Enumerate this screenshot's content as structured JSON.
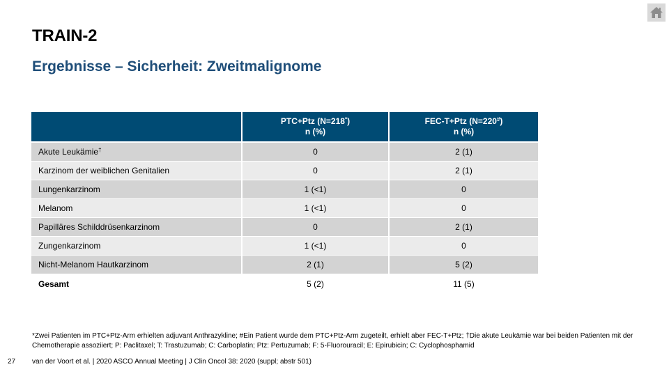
{
  "slide": {
    "title": "TRAIN-2",
    "subtitle": "Ergebnisse – Sicherheit: Zweitmalignome",
    "page_number": "27",
    "reference": "van der Voort et al. | 2020 ASCO Annual Meeting | J Clin Oncol 38: 2020 (suppl; abstr 501)",
    "footnote": "*Zwei Patienten im PTC+Ptz-Arm erhielten adjuvant Anthrazykline; #Ein Patient wurde dem PTC+Ptz-Arm zugeteilt, erhielt aber FEC-T+Ptz; †Die akute Leukämie war bei beiden Patienten mit der Chemotherapie assoziiert; P: Paclitaxel; T: Trastuzumab; C: Carboplatin; Ptz: Pertuzumab; F: 5-Fluorouracil; E: Epirubicin; C: Cyclophosphamid",
    "home_icon": "home-icon"
  },
  "table": {
    "headers": [
      {
        "line1": "",
        "line2": ""
      },
      {
        "line1": "PTC+Ptz (N=218",
        "sup": "*",
        "line1_end": ")",
        "line2": "n (%)"
      },
      {
        "line1": "FEC-T+Ptz (N=220",
        "sup": "#",
        "line1_end": ")",
        "line2": "n (%)"
      }
    ],
    "rows": [
      {
        "label": "Akute Leukämie",
        "sup": "†",
        "ptc": "0",
        "fec": "2 (1)"
      },
      {
        "label": "Karzinom der weiblichen Genitalien",
        "sup": "",
        "ptc": "0",
        "fec": "2 (1)"
      },
      {
        "label": "Lungenkarzinom",
        "sup": "",
        "ptc": "1 (<1)",
        "fec": "0"
      },
      {
        "label": "Melanom",
        "sup": "",
        "ptc": "1 (<1)",
        "fec": "0"
      },
      {
        "label": "Papilläres Schilddrüsenkarzinom",
        "sup": "",
        "ptc": "0",
        "fec": "2 (1)"
      },
      {
        "label": "Zungenkarzinom",
        "sup": "",
        "ptc": "1 (<1)",
        "fec": "0"
      },
      {
        "label": "Nicht-Melanom Hautkarzinom",
        "sup": "",
        "ptc": "2 (1)",
        "fec": "5 (2)"
      },
      {
        "label": "Gesamt",
        "sup": "",
        "ptc": "5 (2)",
        "fec": "11 (5)"
      }
    ]
  }
}
